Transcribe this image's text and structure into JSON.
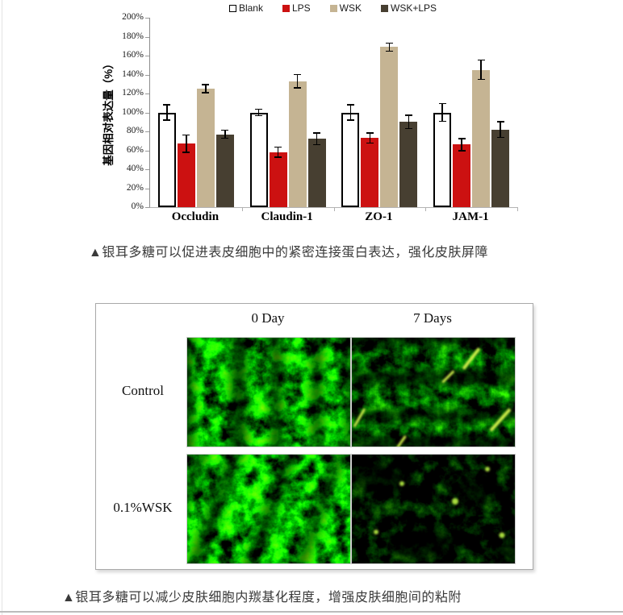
{
  "chart_data": {
    "type": "bar",
    "title": "",
    "categories": [
      "Occludin",
      "Claudin-1",
      "ZO-1",
      "JAM-1"
    ],
    "series": [
      {
        "name": "Blank",
        "fill": "#ffffff",
        "border": "#000000",
        "values": [
          100,
          100,
          100,
          100
        ],
        "errors": [
          8,
          3,
          8,
          9
        ]
      },
      {
        "name": "LPS",
        "fill": "#cc1111",
        "values": [
          67,
          58,
          73,
          66
        ],
        "errors": [
          9,
          5,
          5,
          6
        ]
      },
      {
        "name": "WSK",
        "fill": "#c5b493",
        "values": [
          125,
          133,
          169,
          145
        ],
        "errors": [
          4,
          7,
          4,
          10
        ]
      },
      {
        "name": "WSK+LPS",
        "fill": "#473f31",
        "values": [
          77,
          72,
          90,
          82
        ],
        "errors": [
          4,
          6,
          7,
          8
        ]
      }
    ],
    "xlabel": "",
    "ylabel": "基因相对表达量（%）",
    "ylim": [
      0,
      200
    ],
    "ytick_step": 20,
    "ytick_labels": [
      "0%",
      "20%",
      "40%",
      "60%",
      "80%",
      "100%",
      "120%",
      "140%",
      "160%",
      "180%",
      "200%"
    ],
    "grid": false,
    "legend_position": "top"
  },
  "captions": {
    "figure1": "▲银耳多糖可以促进表皮细胞中的紧密连接蛋白表达，强化皮肤屏障",
    "figure2": "▲银耳多糖可以减少皮肤细胞内羰基化程度，增强皮肤细胞间的粘附"
  },
  "microscopy": {
    "col_headers": [
      "0 Day",
      "7 Days"
    ],
    "row_labels": [
      "Control",
      "0.1%WSK"
    ],
    "cells": [
      {
        "name": "control-0day",
        "row": 0,
        "col": 0,
        "level": "bright",
        "bands": "vertical"
      },
      {
        "name": "control-7days",
        "row": 0,
        "col": 1,
        "level": "medium",
        "bands": "horizontal",
        "streaks": true
      },
      {
        "name": "wsk-0day",
        "row": 1,
        "col": 0,
        "level": "bright",
        "bands": "diagonal"
      },
      {
        "name": "wsk-7days",
        "row": 1,
        "col": 1,
        "level": "dim",
        "bands": "blobs",
        "dots": true
      }
    ]
  }
}
